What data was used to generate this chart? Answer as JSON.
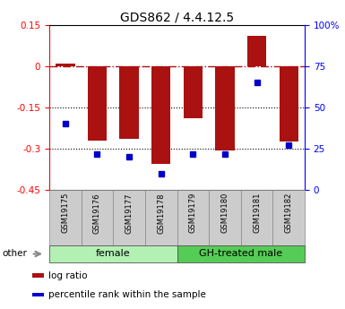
{
  "title": "GDS862 / 4.4.12.5",
  "samples": [
    "GSM19175",
    "GSM19176",
    "GSM19177",
    "GSM19178",
    "GSM19179",
    "GSM19180",
    "GSM19181",
    "GSM19182"
  ],
  "log_ratio": [
    0.01,
    -0.27,
    -0.265,
    -0.355,
    -0.19,
    -0.305,
    0.11,
    -0.275
  ],
  "percentile_rank": [
    40,
    22,
    20,
    10,
    22,
    22,
    65,
    27
  ],
  "groups": [
    {
      "label": "female",
      "start": 0,
      "end": 4,
      "color": "#b3f0b3"
    },
    {
      "label": "GH-treated male",
      "start": 4,
      "end": 8,
      "color": "#55cc55"
    }
  ],
  "ylim_left": [
    -0.45,
    0.15
  ],
  "ylim_right": [
    0,
    100
  ],
  "yticks_left": [
    0.15,
    0,
    -0.15,
    -0.3,
    -0.45
  ],
  "yticks_right": [
    100,
    75,
    50,
    25,
    0
  ],
  "dotted_lines": [
    -0.15,
    -0.3
  ],
  "bar_color": "#aa1111",
  "dot_color": "#0000cc",
  "title_fontsize": 10,
  "bar_width": 0.6,
  "legend_items": [
    {
      "label": "log ratio",
      "color": "#aa1111"
    },
    {
      "label": "percentile rank within the sample",
      "color": "#0000cc"
    }
  ]
}
